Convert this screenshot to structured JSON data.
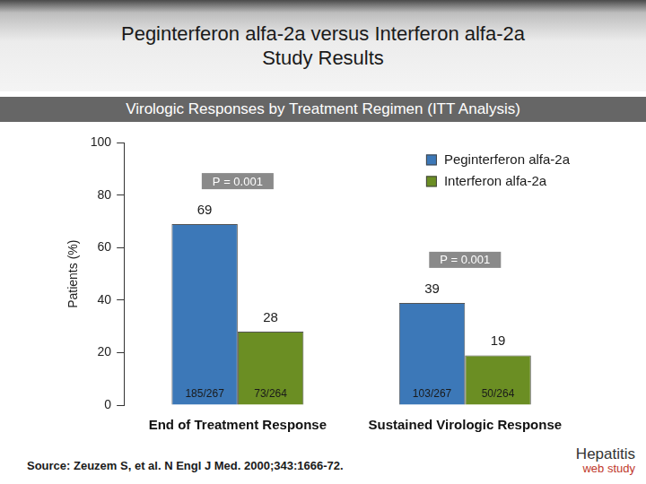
{
  "chart_data": {
    "type": "bar",
    "title": [
      "Peginterferon alfa-2a versus Interferon alfa-2a",
      "Study Results"
    ],
    "subtitle": "Virologic Responses by Treatment Regimen (ITT Analysis)",
    "y_label": "Patients (%)",
    "categories": [
      "End of Treatment Response",
      "Sustained Virologic Response"
    ],
    "series": [
      {
        "name": "Peginterferon alfa-2a",
        "color": "#3c78b8",
        "values": [
          69,
          39
        ],
        "count_labels": [
          "185/267",
          "103/267"
        ]
      },
      {
        "name": "Interferon alfa-2a",
        "color": "#6b8e23",
        "values": [
          28,
          19
        ],
        "count_labels": [
          "73/264",
          "50/264"
        ]
      }
    ],
    "p_values": [
      "P = 0.001",
      "P = 0.001"
    ],
    "ylim": [
      0,
      100
    ],
    "yticks": [
      0,
      20,
      40,
      60,
      80,
      100
    ],
    "grid": false,
    "legend": "upper right",
    "data_labels": true,
    "source": "Source: Zeuzem S, et al.  N Engl J Med. 2000;343:1666-72.",
    "logo": [
      "Hepatitis",
      "web study"
    ]
  }
}
